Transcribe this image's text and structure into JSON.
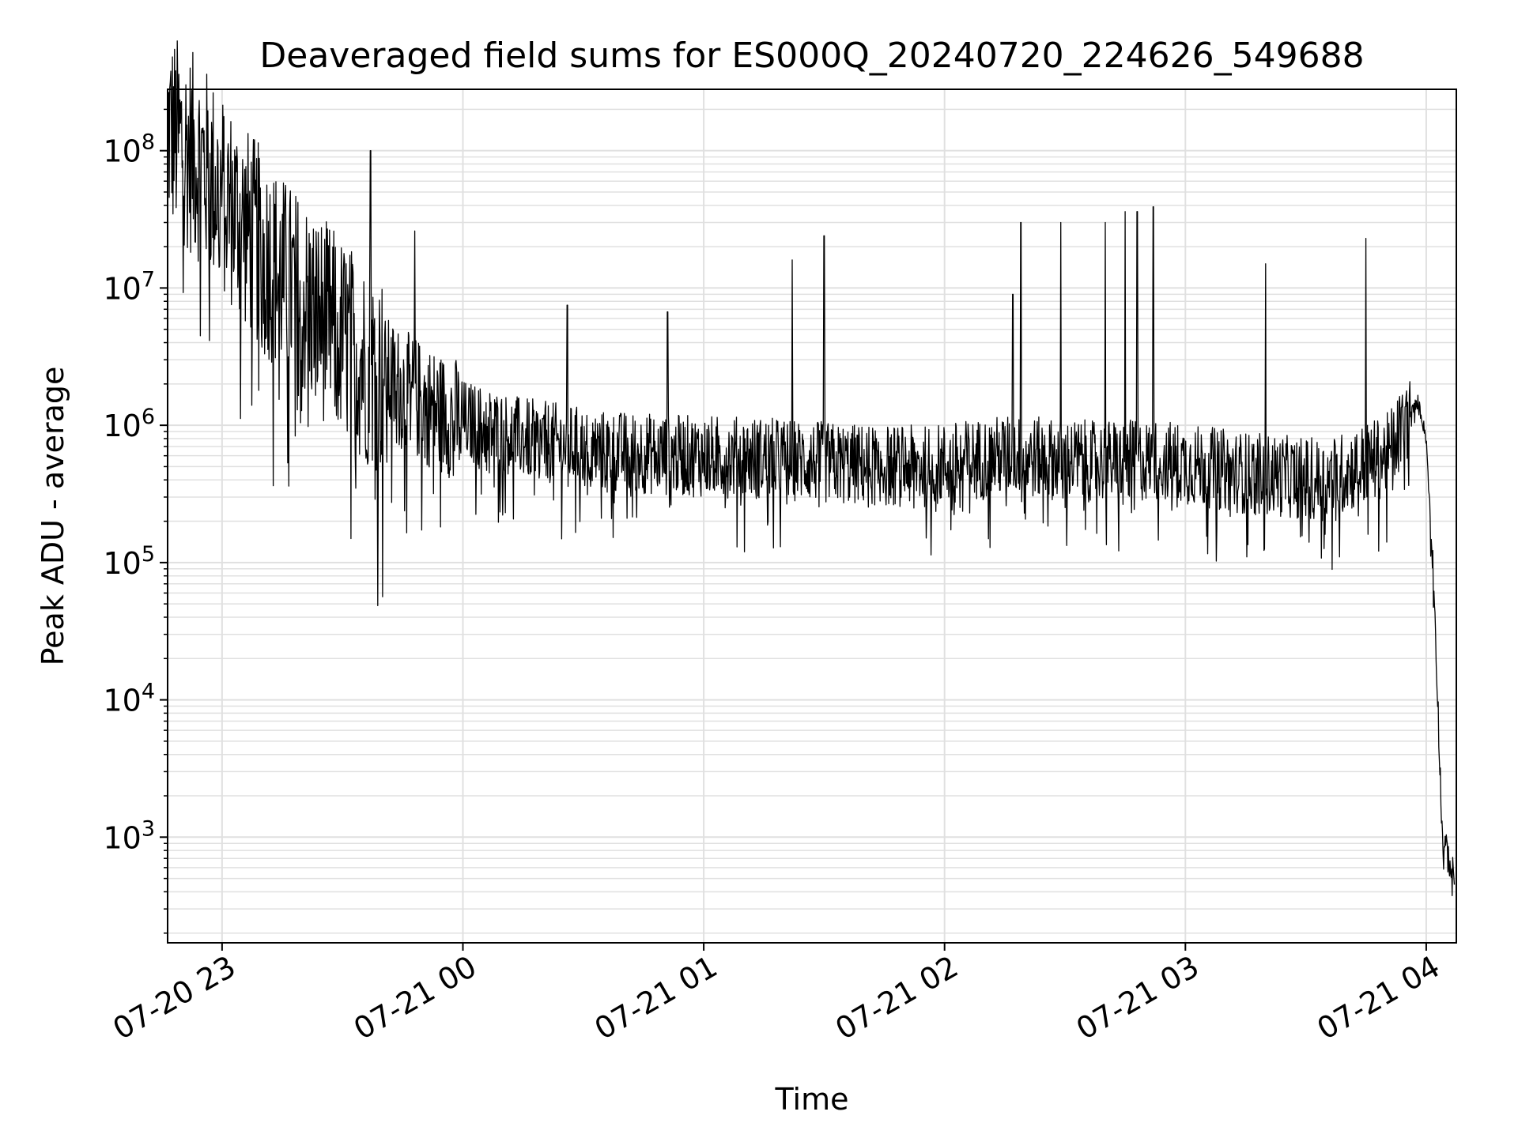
{
  "chart_data": {
    "type": "line",
    "title": "Deaveraged field sums for ES000Q_20240720_224626_549688",
    "xlabel": "Time",
    "ylabel": "Peak ADU - average",
    "yscale": "log",
    "ylim": [
      170,
      280000000
    ],
    "xlim": [
      "2024-07-20 22:46:26",
      "2024-07-21 04:07:30"
    ],
    "grid": true,
    "line_color": "#000000",
    "grid_color": "#e0e0e0",
    "y_ticks": [
      {
        "value": 1000,
        "base": "10",
        "exp": "3"
      },
      {
        "value": 10000,
        "base": "10",
        "exp": "4"
      },
      {
        "value": 100000,
        "base": "10",
        "exp": "5"
      },
      {
        "value": 1000000,
        "base": "10",
        "exp": "6"
      },
      {
        "value": 10000000,
        "base": "10",
        "exp": "7"
      },
      {
        "value": 100000000,
        "base": "10",
        "exp": "8"
      }
    ],
    "x_ticks": [
      {
        "time": "2024-07-20 23:00",
        "label": "07-20 23"
      },
      {
        "time": "2024-07-21 00:00",
        "label": "07-21 00"
      },
      {
        "time": "2024-07-21 01:00",
        "label": "07-21 01"
      },
      {
        "time": "2024-07-21 02:00",
        "label": "07-21 02"
      },
      {
        "time": "2024-07-21 03:00",
        "label": "07-21 03"
      },
      {
        "time": "2024-07-21 04:00",
        "label": "07-21 04"
      }
    ],
    "series": [
      {
        "x": [
          "2024-07-20 22:46",
          "2024-07-20 22:55",
          "2024-07-20 23:05",
          "2024-07-20 23:15",
          "2024-07-20 23:25",
          "2024-07-20 23:35",
          "2024-07-20 23:45",
          "2024-07-20 23:55",
          "2024-07-21 00:15",
          "2024-07-21 00:35",
          "2024-07-21 00:55",
          "2024-07-21 01:15",
          "2024-07-21 01:35",
          "2024-07-21 01:55",
          "2024-07-21 02:15",
          "2024-07-21 02:35",
          "2024-07-21 02:55",
          "2024-07-21 03:15",
          "2024-07-21 03:35",
          "2024-07-21 03:50",
          "2024-07-21 03:58",
          "2024-07-21 04:00",
          "2024-07-21 04:02",
          "2024-07-21 04:04",
          "2024-07-21 04:07"
        ],
        "y": [
          150000000,
          80000000,
          30000000,
          12000000,
          6000000,
          3000000,
          1800000,
          1200000,
          800000,
          650000,
          600000,
          580000,
          520000,
          500000,
          600000,
          550000,
          550000,
          450000,
          400000,
          600000,
          1500000,
          800000,
          60000,
          1000,
          500
        ],
        "spikes": [
          {
            "x": "2024-07-20 23:37",
            "y": 100000000
          },
          {
            "x": "2024-07-20 23:48",
            "y": 26000000
          },
          {
            "x": "2024-07-21 00:26",
            "y": 7500000
          },
          {
            "x": "2024-07-21 00:51",
            "y": 6700000
          },
          {
            "x": "2024-07-21 01:22",
            "y": 16000000
          },
          {
            "x": "2024-07-21 01:30",
            "y": 24000000
          },
          {
            "x": "2024-07-21 02:17",
            "y": 9000000
          },
          {
            "x": "2024-07-21 02:19",
            "y": 30000000
          },
          {
            "x": "2024-07-21 02:29",
            "y": 30000000
          },
          {
            "x": "2024-07-21 02:40",
            "y": 30000000
          },
          {
            "x": "2024-07-21 02:45",
            "y": 36000000
          },
          {
            "x": "2024-07-21 02:48",
            "y": 36000000
          },
          {
            "x": "2024-07-21 02:52",
            "y": 39000000
          },
          {
            "x": "2024-07-21 03:20",
            "y": 15000000
          },
          {
            "x": "2024-07-21 03:45",
            "y": 23000000
          }
        ]
      }
    ]
  }
}
